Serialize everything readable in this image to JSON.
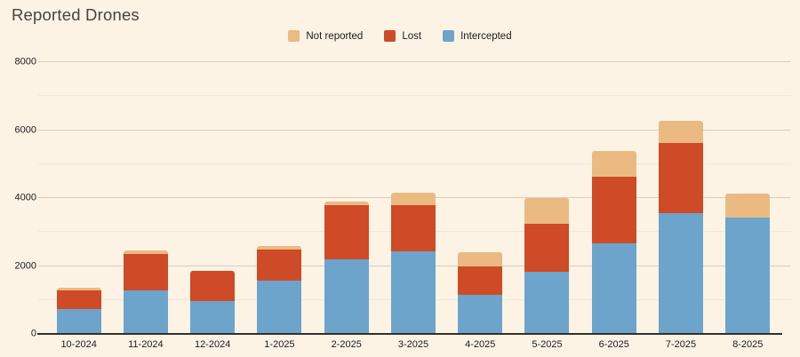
{
  "title": "Reported Drones",
  "colors": {
    "background": "#fcf3e5",
    "title_text": "#49443c",
    "axis_text": "#1c1c1c",
    "grid_major": "#d8cdbd",
    "grid_minor": "#f0e7d8",
    "baseline": "#33302b"
  },
  "chart_data": {
    "type": "bar",
    "stacked": true,
    "title": "Reported Drones",
    "categories": [
      "10-2024",
      "11-2024",
      "12-2024",
      "1-2025",
      "2-2025",
      "3-2025",
      "4-2025",
      "5-2025",
      "6-2025",
      "7-2025",
      "8-2025"
    ],
    "series": [
      {
        "name": "Not reported",
        "color": "#eaba82",
        "values": [
          60,
          100,
          0,
          100,
          90,
          350,
          400,
          760,
          750,
          660,
          710
        ]
      },
      {
        "name": "Lost",
        "color": "#cf4a27",
        "values": [
          560,
          1060,
          890,
          920,
          1600,
          1380,
          850,
          1400,
          1960,
          2070,
          0
        ]
      },
      {
        "name": "Intercepted",
        "color": "#6da4cb",
        "values": [
          730,
          1290,
          960,
          1560,
          2200,
          2420,
          1150,
          1840,
          2680,
          3550,
          3420
        ]
      }
    ],
    "totals": [
      1350,
      2450,
      1850,
      2580,
      3890,
      4150,
      2400,
      4000,
      5390,
      6280,
      4130
    ],
    "xlabel": "",
    "ylabel": "",
    "ylim": [
      0,
      8000
    ],
    "y_major_ticks": [
      0,
      2000,
      4000,
      6000,
      8000
    ],
    "y_minor_ticks": [
      1000,
      3000,
      5000,
      7000
    ],
    "y_tick_labels": [
      "0",
      "2000",
      "4000",
      "6000",
      "8000"
    ],
    "legend_position": "top-center",
    "grid": true
  }
}
